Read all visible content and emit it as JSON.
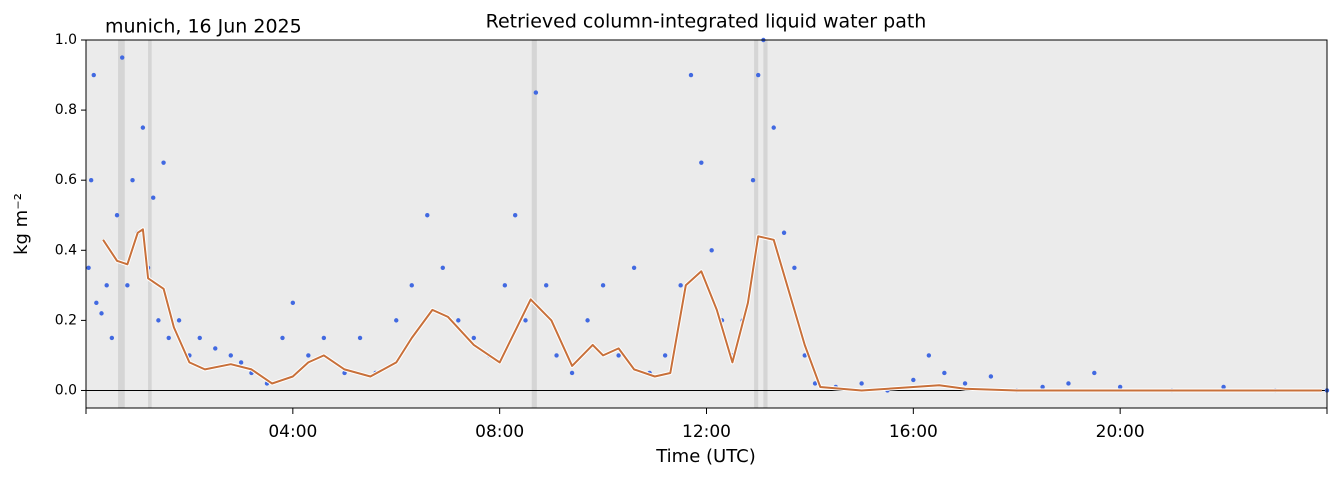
{
  "chart_data": {
    "type": "scatter",
    "title": "Retrieved column-integrated liquid water path",
    "annotation": "munich, 16 Jun 2025",
    "xlabel": "Time (UTC)",
    "ylabel": "kg m⁻²",
    "xlim": [
      0,
      24
    ],
    "ylim": [
      -0.05,
      1.0
    ],
    "xticks": [
      0,
      {
        "value": 4,
        "label": "04:00"
      },
      {
        "value": 8,
        "label": "08:00"
      },
      {
        "value": 12,
        "label": "12:00"
      },
      {
        "value": 16,
        "label": "16:00"
      },
      {
        "value": 20,
        "label": "20:00"
      },
      24
    ],
    "yticks": [
      {
        "value": 0,
        "label": "0.0"
      },
      0.2,
      0.4,
      0.6,
      0.8,
      {
        "value": 1,
        "label": "1.0"
      }
    ],
    "zero_line": true,
    "background": "#ebebeb",
    "flag_spans": [
      [
        0.62,
        0.75
      ],
      [
        1.2,
        1.27
      ],
      [
        8.62,
        8.72
      ],
      [
        12.92,
        13.0
      ],
      [
        13.1,
        13.18
      ]
    ],
    "flag_color": "#d3d3d3",
    "series": [
      {
        "kind": "points",
        "color": "#4169e1",
        "x": [
          0.05,
          0.1,
          0.15,
          0.2,
          0.3,
          0.4,
          0.5,
          0.6,
          0.7,
          0.8,
          0.9,
          1.0,
          1.1,
          1.2,
          1.3,
          1.4,
          1.5,
          1.6,
          1.8,
          2.0,
          2.2,
          2.5,
          2.8,
          3.0,
          3.2,
          3.5,
          3.8,
          4.0,
          4.3,
          4.6,
          5.0,
          5.3,
          5.6,
          6.0,
          6.3,
          6.6,
          6.9,
          7.2,
          7.5,
          7.8,
          8.1,
          8.3,
          8.5,
          8.7,
          8.9,
          9.1,
          9.4,
          9.7,
          10.0,
          10.3,
          10.6,
          10.9,
          11.2,
          11.5,
          11.7,
          11.9,
          12.1,
          12.3,
          12.5,
          12.7,
          12.9,
          13.0,
          13.1,
          13.3,
          13.5,
          13.7,
          13.9,
          14.1,
          14.5,
          15.0,
          15.5,
          16.0,
          16.3,
          16.6,
          17.0,
          17.5,
          18.0,
          18.5,
          19.0,
          19.5,
          20.0,
          21.0,
          22.0,
          23.0,
          24.0
        ],
        "values": [
          0.35,
          0.6,
          0.9,
          0.25,
          0.22,
          0.3,
          0.15,
          0.5,
          0.95,
          0.3,
          0.6,
          0.45,
          0.75,
          0.35,
          0.55,
          0.2,
          0.65,
          0.15,
          0.2,
          0.1,
          0.15,
          0.12,
          0.1,
          0.08,
          0.05,
          0.02,
          0.15,
          0.25,
          0.1,
          0.15,
          0.05,
          0.15,
          0.05,
          0.2,
          0.3,
          0.5,
          0.35,
          0.2,
          0.15,
          0.1,
          0.3,
          0.5,
          0.2,
          0.85,
          0.3,
          0.1,
          0.05,
          0.2,
          0.3,
          0.1,
          0.35,
          0.05,
          0.1,
          0.3,
          0.9,
          0.65,
          0.4,
          0.2,
          0.1,
          0.2,
          0.6,
          0.9,
          1.0,
          0.75,
          0.45,
          0.35,
          0.1,
          0.02,
          0.01,
          0.02,
          0.0,
          0.03,
          0.1,
          0.05,
          0.02,
          0.04,
          0.0,
          0.01,
          0.02,
          0.05,
          0.01,
          0.0,
          0.01,
          0.0,
          0.0
        ]
      },
      {
        "kind": "line",
        "color": "#c8703a",
        "x": [
          0.33,
          0.6,
          0.8,
          1.0,
          1.1,
          1.2,
          1.5,
          1.7,
          2.0,
          2.3,
          2.8,
          3.2,
          3.6,
          4.0,
          4.3,
          4.6,
          5.0,
          5.5,
          6.0,
          6.3,
          6.7,
          7.0,
          7.5,
          8.0,
          8.3,
          8.6,
          9.0,
          9.4,
          9.8,
          10.0,
          10.3,
          10.6,
          11.0,
          11.3,
          11.6,
          11.9,
          12.2,
          12.5,
          12.8,
          13.0,
          13.3,
          13.6,
          13.9,
          14.2,
          15.0,
          16.0,
          16.5,
          17.0,
          18.0,
          20.0,
          22.0,
          23.9
        ],
        "values": [
          0.43,
          0.37,
          0.36,
          0.45,
          0.46,
          0.32,
          0.29,
          0.18,
          0.08,
          0.06,
          0.075,
          0.06,
          0.02,
          0.04,
          0.08,
          0.1,
          0.06,
          0.04,
          0.08,
          0.15,
          0.23,
          0.21,
          0.13,
          0.08,
          0.17,
          0.26,
          0.2,
          0.07,
          0.13,
          0.1,
          0.12,
          0.06,
          0.04,
          0.05,
          0.3,
          0.34,
          0.23,
          0.08,
          0.25,
          0.44,
          0.43,
          0.28,
          0.13,
          0.01,
          0.0,
          0.01,
          0.015,
          0.005,
          0.0,
          0.0,
          0.0,
          0.0
        ]
      }
    ]
  }
}
